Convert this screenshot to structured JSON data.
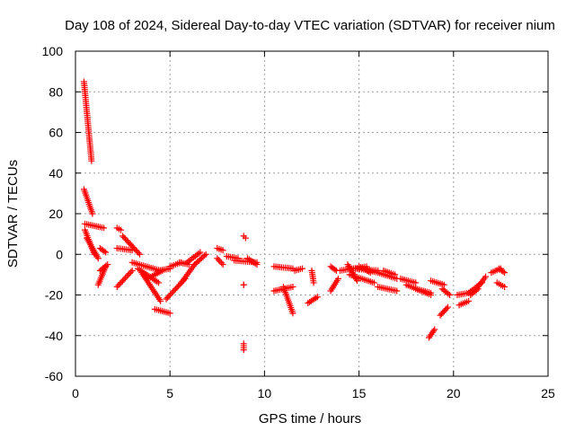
{
  "chart_data": {
    "type": "scatter",
    "title": "Day 108 of 2024, Sidereal Day-to-day VTEC variation (SDTVAR) for receiver nium",
    "xlabel": "GPS time / hours",
    "ylabel": "SDTVAR / TECUs",
    "xlim": [
      0,
      25
    ],
    "ylim": [
      -60,
      100
    ],
    "xticks": [
      0,
      5,
      10,
      15,
      20,
      25
    ],
    "xtick_labels": [
      "0",
      "5",
      "10",
      "15",
      "20",
      "25"
    ],
    "yticks": [
      -60,
      -40,
      -20,
      0,
      20,
      40,
      60,
      80,
      100
    ],
    "ytick_labels": [
      "-60",
      "-40",
      "-20",
      "0",
      "20",
      "40",
      "60",
      "80",
      "100"
    ],
    "grid": true,
    "marker": "+",
    "color": "#ff0000",
    "segments": [
      {
        "x0": 0.45,
        "y0": 85,
        "x1": 0.85,
        "y1": 46
      },
      {
        "x0": 0.45,
        "y0": 32,
        "x1": 0.9,
        "y1": 20
      },
      {
        "x0": 0.5,
        "y0": 15,
        "x1": 1.5,
        "y1": 13
      },
      {
        "x0": 0.5,
        "y0": 12,
        "x1": 1.0,
        "y1": 0
      },
      {
        "x0": 0.6,
        "y0": 8,
        "x1": 1.2,
        "y1": -2
      },
      {
        "x0": 1.2,
        "y0": -15,
        "x1": 1.6,
        "y1": -6
      },
      {
        "x0": 1.3,
        "y0": -8,
        "x1": 1.7,
        "y1": -5
      },
      {
        "x0": 1.3,
        "y0": 3,
        "x1": 1.6,
        "y1": 1
      },
      {
        "x0": 2.2,
        "y0": 13,
        "x1": 2.4,
        "y1": 12
      },
      {
        "x0": 2.2,
        "y0": 3,
        "x1": 3.0,
        "y1": 2
      },
      {
        "x0": 2.2,
        "y0": -16,
        "x1": 3.0,
        "y1": -8
      },
      {
        "x0": 2.5,
        "y0": 9,
        "x1": 3.4,
        "y1": 0
      },
      {
        "x0": 3.0,
        "y0": -4,
        "x1": 4.5,
        "y1": -8
      },
      {
        "x0": 3.3,
        "y0": -7,
        "x1": 4.4,
        "y1": -14
      },
      {
        "x0": 3.5,
        "y0": -9,
        "x1": 4.5,
        "y1": -23
      },
      {
        "x0": 3.8,
        "y0": -12,
        "x1": 4.6,
        "y1": -8
      },
      {
        "x0": 4.2,
        "y0": -27,
        "x1": 5.0,
        "y1": -29
      },
      {
        "x0": 4.4,
        "y0": -8,
        "x1": 5.0,
        "y1": -7
      },
      {
        "x0": 4.8,
        "y0": -22,
        "x1": 5.8,
        "y1": -12
      },
      {
        "x0": 5.0,
        "y0": -6,
        "x1": 5.6,
        "y1": -4
      },
      {
        "x0": 5.5,
        "y0": -4,
        "x1": 6.0,
        "y1": -5
      },
      {
        "x0": 5.6,
        "y0": -14,
        "x1": 6.3,
        "y1": -5
      },
      {
        "x0": 5.9,
        "y0": -4,
        "x1": 6.6,
        "y1": 1
      },
      {
        "x0": 6.3,
        "y0": -5,
        "x1": 6.9,
        "y1": 0
      },
      {
        "x0": 7.5,
        "y0": 3,
        "x1": 7.8,
        "y1": 2
      },
      {
        "x0": 7.5,
        "y0": -2,
        "x1": 7.8,
        "y1": -5
      },
      {
        "x0": 8.0,
        "y0": -1,
        "x1": 8.6,
        "y1": -2
      },
      {
        "x0": 8.4,
        "y0": -3,
        "x1": 9.6,
        "y1": -4
      },
      {
        "x0": 8.9,
        "y0": -44,
        "x1": 8.9,
        "y1": -47
      },
      {
        "x0": 8.9,
        "y0": 9,
        "x1": 9.0,
        "y1": 8
      },
      {
        "x0": 8.9,
        "y0": -15,
        "x1": 8.9,
        "y1": -15
      },
      {
        "x0": 9.1,
        "y0": -2,
        "x1": 9.6,
        "y1": -5
      },
      {
        "x0": 10.5,
        "y0": -6,
        "x1": 11.5,
        "y1": -7
      },
      {
        "x0": 10.5,
        "y0": -18,
        "x1": 11.5,
        "y1": -16
      },
      {
        "x0": 11.0,
        "y0": -16,
        "x1": 11.5,
        "y1": -29
      },
      {
        "x0": 11.6,
        "y0": -8,
        "x1": 12.0,
        "y1": -7
      },
      {
        "x0": 12.3,
        "y0": -24,
        "x1": 12.8,
        "y1": -21
      },
      {
        "x0": 12.5,
        "y0": -8,
        "x1": 12.6,
        "y1": -14
      },
      {
        "x0": 13.5,
        "y0": -6,
        "x1": 13.8,
        "y1": -8
      },
      {
        "x0": 13.5,
        "y0": -18,
        "x1": 13.9,
        "y1": -12
      },
      {
        "x0": 14.0,
        "y0": -8,
        "x1": 15.4,
        "y1": -6
      },
      {
        "x0": 14.4,
        "y0": -5,
        "x1": 14.9,
        "y1": -13
      },
      {
        "x0": 14.5,
        "y0": -10,
        "x1": 15.8,
        "y1": -14
      },
      {
        "x0": 14.6,
        "y0": -7,
        "x1": 16.0,
        "y1": -8
      },
      {
        "x0": 15.5,
        "y0": -8,
        "x1": 16.0,
        "y1": -9
      },
      {
        "x0": 15.0,
        "y0": -6,
        "x1": 15.6,
        "y1": -9
      },
      {
        "x0": 16.0,
        "y0": -9,
        "x1": 17.0,
        "y1": -12
      },
      {
        "x0": 16.0,
        "y0": -16,
        "x1": 17.0,
        "y1": -18
      },
      {
        "x0": 16.3,
        "y0": -8,
        "x1": 16.9,
        "y1": -10
      },
      {
        "x0": 17.2,
        "y0": -12,
        "x1": 18.0,
        "y1": -14
      },
      {
        "x0": 17.5,
        "y0": -15,
        "x1": 18.8,
        "y1": -20
      },
      {
        "x0": 18.0,
        "y0": -17,
        "x1": 18.8,
        "y1": -19
      },
      {
        "x0": 18.7,
        "y0": -41,
        "x1": 19.0,
        "y1": -37
      },
      {
        "x0": 18.8,
        "y0": -13,
        "x1": 19.5,
        "y1": -15
      },
      {
        "x0": 19.3,
        "y0": -30,
        "x1": 19.7,
        "y1": -26
      },
      {
        "x0": 19.4,
        "y0": -17,
        "x1": 19.8,
        "y1": -20
      },
      {
        "x0": 20.2,
        "y0": -20,
        "x1": 20.8,
        "y1": -19
      },
      {
        "x0": 20.3,
        "y0": -25,
        "x1": 20.8,
        "y1": -23
      },
      {
        "x0": 20.8,
        "y0": -19,
        "x1": 21.5,
        "y1": -14
      },
      {
        "x0": 20.9,
        "y0": -20,
        "x1": 21.3,
        "y1": -17
      },
      {
        "x0": 21.3,
        "y0": -16,
        "x1": 21.7,
        "y1": -11
      },
      {
        "x0": 22.0,
        "y0": -9,
        "x1": 22.5,
        "y1": -7
      },
      {
        "x0": 22.3,
        "y0": -14,
        "x1": 22.7,
        "y1": -16
      },
      {
        "x0": 22.4,
        "y0": -7,
        "x1": 22.7,
        "y1": -9
      }
    ]
  }
}
